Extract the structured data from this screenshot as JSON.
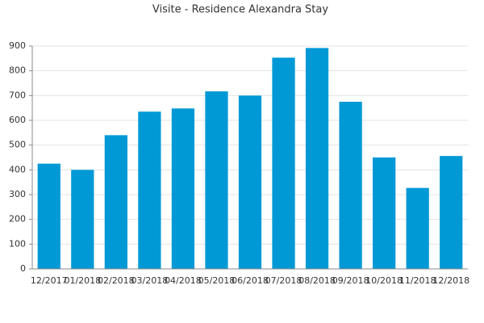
{
  "chart_data": {
    "type": "bar",
    "title": "Visite - Residence Alexandra Stay",
    "categories": [
      "12/2017",
      "01/2018",
      "02/2018",
      "03/2018",
      "04/2018",
      "05/2018",
      "06/2018",
      "07/2018",
      "08/2018",
      "09/2018",
      "10/2018",
      "11/2018",
      "12/2018"
    ],
    "values": [
      425,
      400,
      540,
      635,
      648,
      717,
      700,
      853,
      892,
      675,
      450,
      327,
      456
    ],
    "color": "#0099d6",
    "ylim": [
      0,
      900
    ],
    "yticks": [
      0,
      100,
      200,
      300,
      400,
      500,
      600,
      700,
      800,
      900
    ],
    "grid": true
  }
}
